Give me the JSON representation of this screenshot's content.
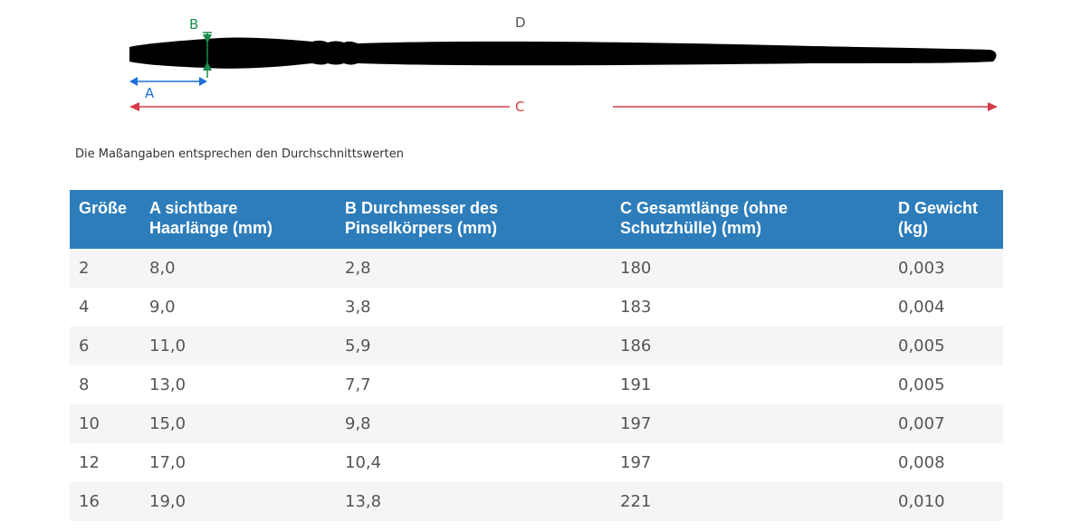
{
  "diagram": {
    "label_a": "A",
    "label_b": "B",
    "label_c": "C",
    "label_d": "D",
    "colors": {
      "a": "#1f6fd6",
      "b": "#1a8a4a",
      "c": "#d63b4a",
      "brush": "#000000"
    }
  },
  "note": "Die Maßangaben entsprechen den Durchschnittswerten",
  "table": {
    "headers": [
      [
        "Größe"
      ],
      [
        "A sichtbare",
        "Haarlänge (mm)"
      ],
      [
        "B Durchmesser des",
        "Pinselkörpers (mm)"
      ],
      [
        "C Gesamtlänge (ohne",
        "Schutzhülle) (mm)"
      ],
      [
        "D Gewicht",
        "(kg)"
      ]
    ],
    "rows": [
      [
        "2",
        "8,0",
        "2,8",
        "180",
        "0,003"
      ],
      [
        "4",
        "9,0",
        "3,8",
        "183",
        "0,004"
      ],
      [
        "6",
        "11,0",
        "5,9",
        "186",
        "0,005"
      ],
      [
        "8",
        "13,0",
        "7,7",
        "191",
        "0,005"
      ],
      [
        "10",
        "15,0",
        "9,8",
        "197",
        "0,007"
      ],
      [
        "12",
        "17,0",
        "10,4",
        "197",
        "0,008"
      ],
      [
        "16",
        "19,0",
        "13,8",
        "221",
        "0,010"
      ]
    ]
  }
}
